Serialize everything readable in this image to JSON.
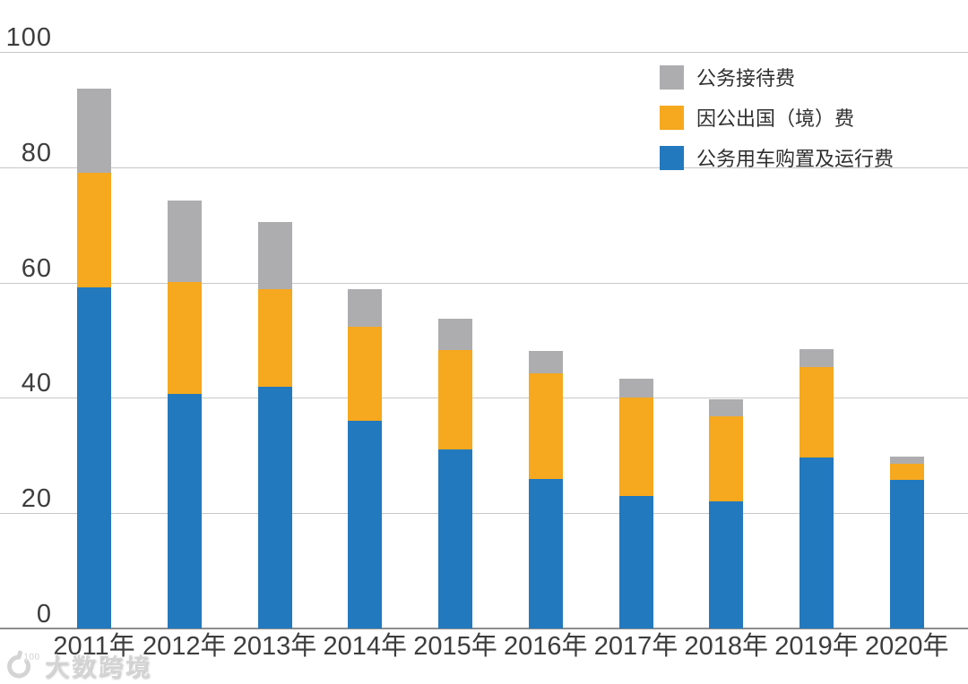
{
  "chart_data": {
    "type": "bar",
    "stacked": true,
    "categories": [
      "2011年",
      "2012年",
      "2013年",
      "2014年",
      "2015年",
      "2016年",
      "2017年",
      "2018年",
      "2019年",
      "2020年"
    ],
    "series": [
      {
        "name": "公务用车购置及运行费",
        "color": "#2379BD",
        "values": [
          59.2,
          40.7,
          42.0,
          36.0,
          31.0,
          25.9,
          23.0,
          22.1,
          29.6,
          25.7
        ]
      },
      {
        "name": "因公出国（境）费",
        "color": "#F6A81E",
        "values": [
          19.8,
          19.4,
          16.9,
          16.3,
          17.3,
          18.3,
          17.0,
          14.7,
          15.8,
          2.9
        ]
      },
      {
        "name": "公务接待费",
        "color": "#ADADAF",
        "values": [
          14.7,
          14.2,
          11.6,
          6.5,
          5.4,
          4.0,
          3.4,
          2.9,
          3.0,
          1.2
        ]
      }
    ],
    "legend": [
      "公务接待费",
      "因公出国（境）费",
      "公务用车购置及运行费"
    ],
    "legend_position": "top-right",
    "title": "",
    "xlabel": "",
    "ylabel": "",
    "ylim": [
      0,
      100
    ],
    "yticks": [
      0,
      20,
      40,
      60,
      80,
      100
    ],
    "grid": true
  },
  "watermark": {
    "text": "大数跨境",
    "logo": "swirl-100-icon"
  },
  "colors": {
    "gridline": "#c7c7c7",
    "axis": "#8d8d8d",
    "tick_text": "#3d3d3d",
    "background": "#ffffff"
  }
}
